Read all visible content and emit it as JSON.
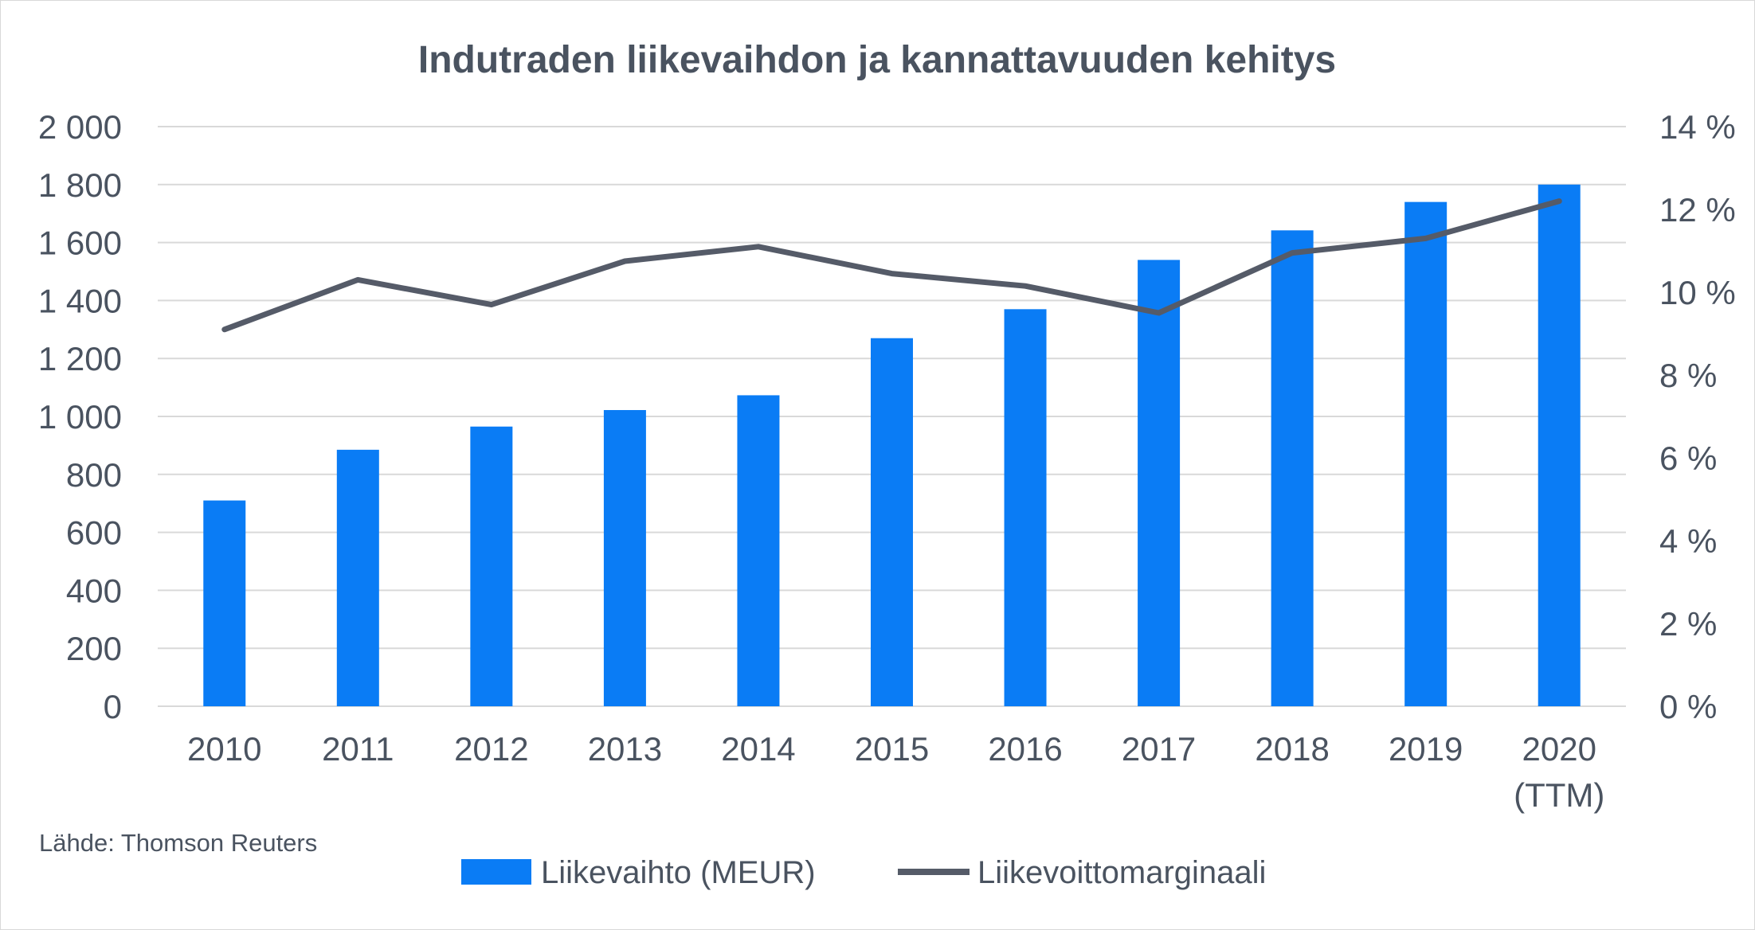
{
  "chart_data": {
    "type": "bar",
    "title": "Indutraden liikevaihdon ja kannattavuuden kehitys",
    "categories": [
      "2010",
      "2011",
      "2012",
      "2013",
      "2014",
      "2015",
      "2016",
      "2017",
      "2018",
      "2019",
      "2020\n(TTM)"
    ],
    "series": [
      {
        "name": "Liikevaihto (MEUR)",
        "type": "bar",
        "axis": "left",
        "color": "#0a7cf5",
        "values": [
          710,
          885,
          965,
          1022,
          1073,
          1270,
          1370,
          1540,
          1642,
          1740,
          1800
        ]
      },
      {
        "name": "Liikevoittomarginaali",
        "type": "line",
        "axis": "right",
        "color": "#555b68",
        "values": [
          9.1,
          10.3,
          9.7,
          10.75,
          11.1,
          10.45,
          10.15,
          9.5,
          10.95,
          11.3,
          12.2
        ]
      }
    ],
    "ylim_left": [
      0,
      2000
    ],
    "yticks_left": [
      "0",
      "200",
      "400",
      "600",
      "800",
      "1 000",
      "1 200",
      "1 400",
      "1 600",
      "1 800",
      "2 000"
    ],
    "ylim_right": [
      0,
      14
    ],
    "yticks_right": [
      "0 %",
      "2 %",
      "4 %",
      "6 %",
      "8 %",
      "10 %",
      "12 %",
      "14 %"
    ],
    "grid": true,
    "legend_position": "bottom",
    "source": "Lähde: Thomson Reuters"
  }
}
